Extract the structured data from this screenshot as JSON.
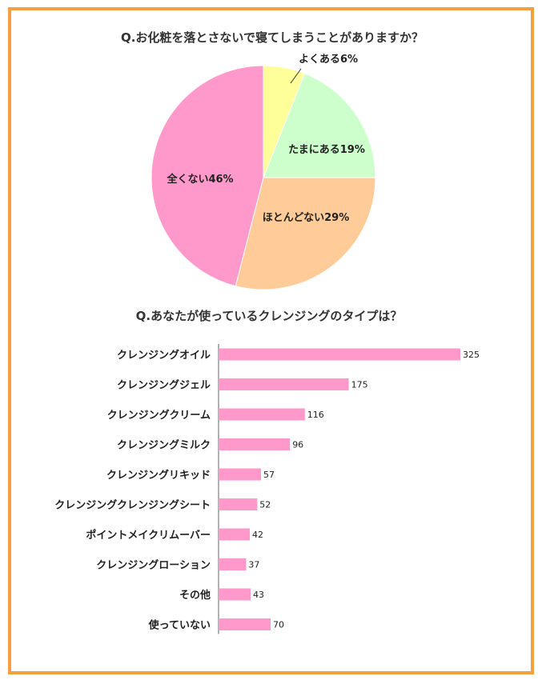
{
  "chart_data": [
    {
      "type": "pie",
      "title": "Q.お化粧を落とさないで寝てしまうことがありますか？",
      "slices": [
        {
          "label": "よくある6%",
          "value": 6,
          "color": "#ffff99"
        },
        {
          "label": "たまにある19%",
          "value": 19,
          "color": "#ccffcc"
        },
        {
          "label": "ほとんどない29%",
          "value": 29,
          "color": "#ffcc99"
        },
        {
          "label": "全くない46%",
          "value": 46,
          "color": "#ff99cc"
        }
      ]
    },
    {
      "type": "bar",
      "orientation": "horizontal",
      "title": "Q.あなたが使っているクレンジングのタイプは？",
      "categories": [
        "クレンジングオイル",
        "クレンジングジェル",
        "クレンジングクリーム",
        "クレンジングミルク",
        "クレンジングリキッド",
        "クレンジングクレンジングシート",
        "ポイントメイクリムーバー",
        "クレンジングローション",
        "その他",
        "使っていない"
      ],
      "values": [
        325,
        175,
        116,
        96,
        57,
        52,
        42,
        37,
        43,
        70
      ],
      "value_labels": [
        "325",
        "175",
        "116",
        "96",
        "57",
        "52",
        "42",
        "37",
        "43",
        "70"
      ],
      "xlim": [
        0,
        325
      ],
      "bar_color": "#ff99cc",
      "grid": false
    }
  ],
  "frame_color": "#f4a040"
}
